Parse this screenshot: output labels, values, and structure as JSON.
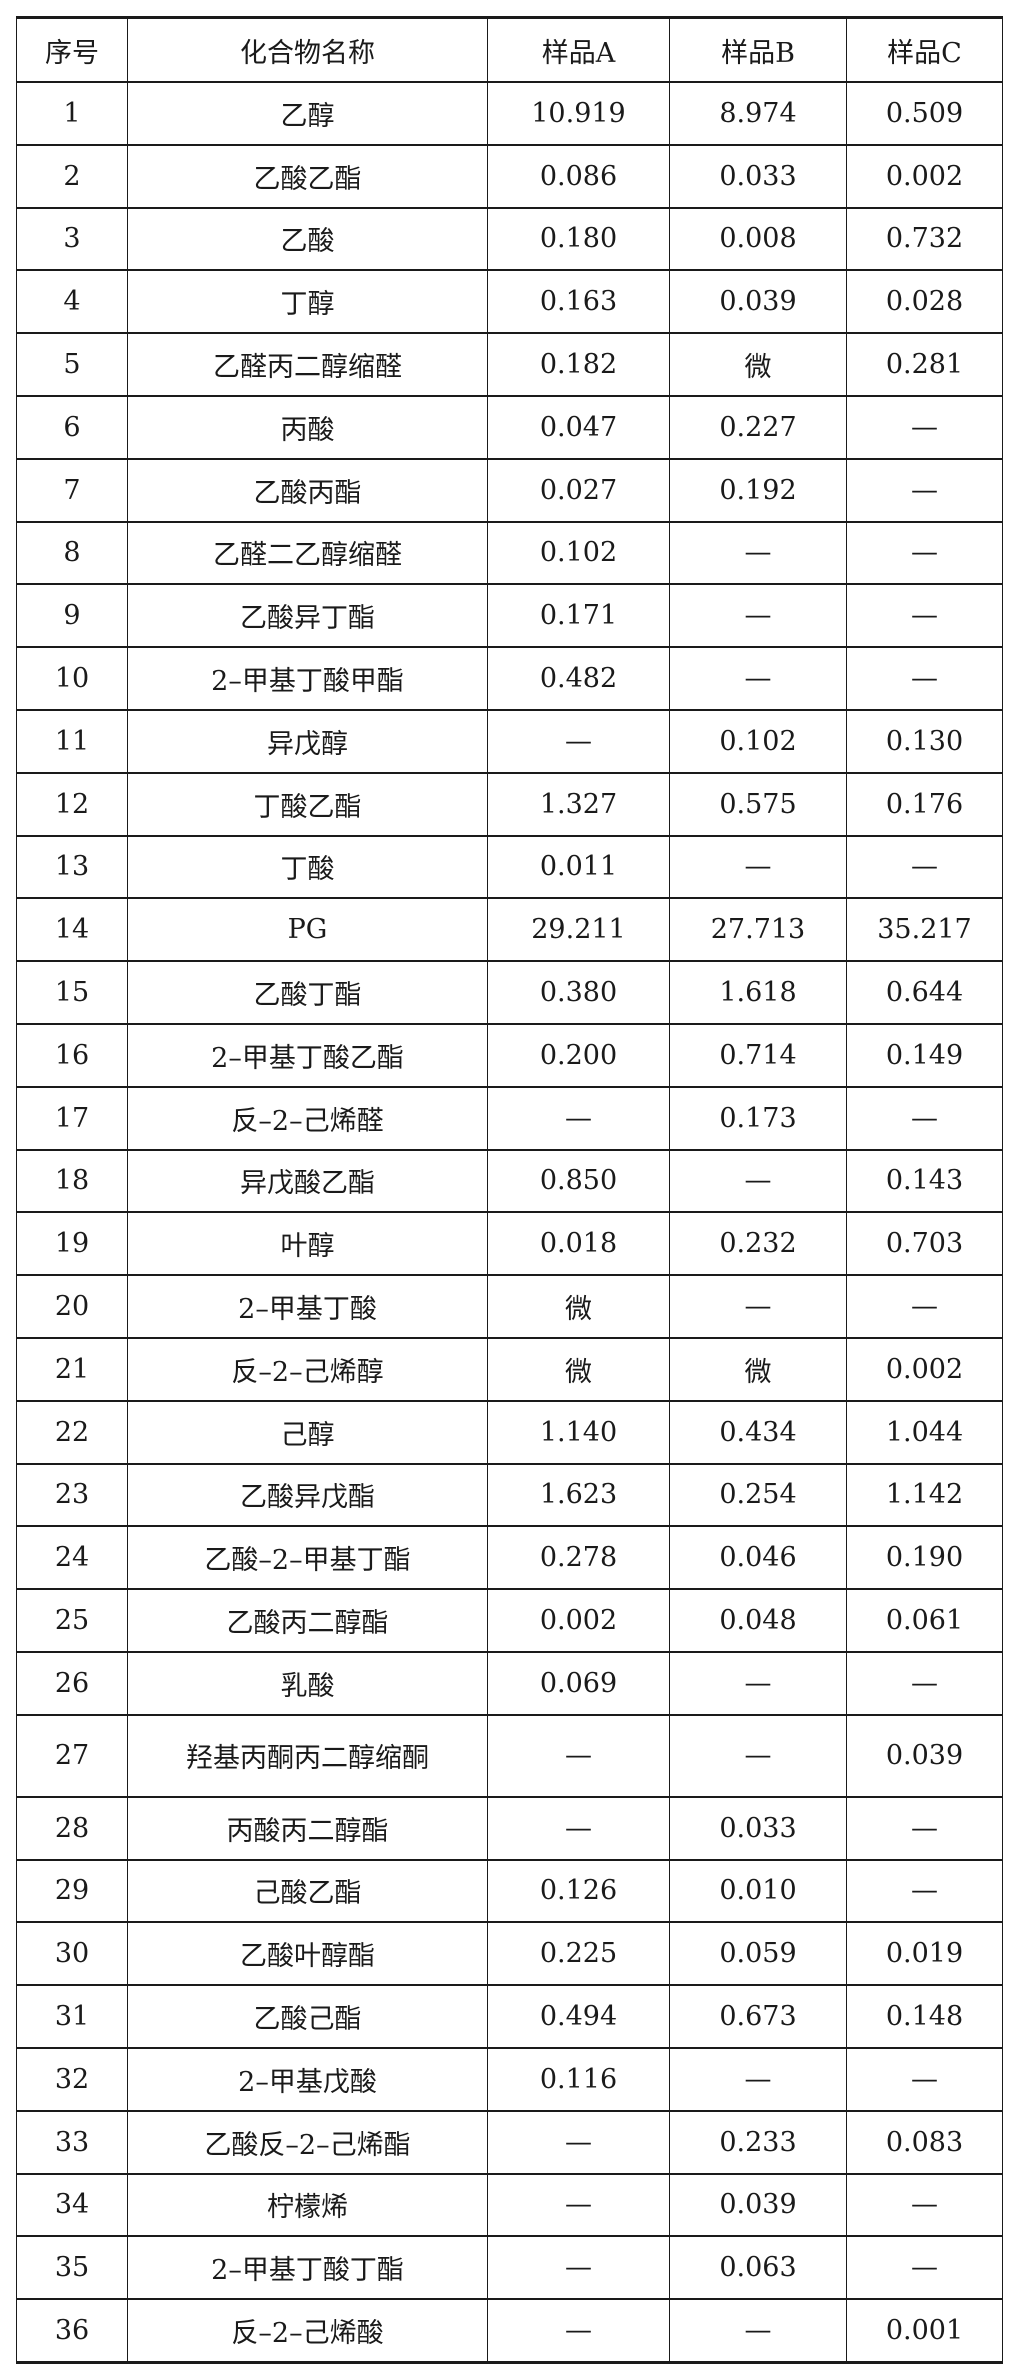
{
  "table": {
    "headers": [
      "序号",
      "化合物名称",
      "样品A",
      "样品B",
      "样品C"
    ],
    "rows": [
      [
        "1",
        "乙醇",
        "10.919",
        "8.974",
        "0.509"
      ],
      [
        "2",
        "乙酸乙酯",
        "0.086",
        "0.033",
        "0.002"
      ],
      [
        "3",
        "乙酸",
        "0.180",
        "0.008",
        "0.732"
      ],
      [
        "4",
        "丁醇",
        "0.163",
        "0.039",
        "0.028"
      ],
      [
        "5",
        "乙醛丙二醇缩醛",
        "0.182",
        "微",
        "0.281"
      ],
      [
        "6",
        "丙酸",
        "0.047",
        "0.227",
        "—"
      ],
      [
        "7",
        "乙酸丙酯",
        "0.027",
        "0.192",
        "—"
      ],
      [
        "8",
        "乙醛二乙醇缩醛",
        "0.102",
        "—",
        "—"
      ],
      [
        "9",
        "乙酸异丁酯",
        "0.171",
        "—",
        "—"
      ],
      [
        "10",
        "2–甲基丁酸甲酯",
        "0.482",
        "—",
        "—"
      ],
      [
        "11",
        "异戊醇",
        "—",
        "0.102",
        "0.130"
      ],
      [
        "12",
        "丁酸乙酯",
        "1.327",
        "0.575",
        "0.176"
      ],
      [
        "13",
        "丁酸",
        "0.011",
        "—",
        "—"
      ],
      [
        "14",
        "PG",
        "29.211",
        "27.713",
        "35.217"
      ],
      [
        "15",
        "乙酸丁酯",
        "0.380",
        "1.618",
        "0.644"
      ],
      [
        "16",
        "2–甲基丁酸乙酯",
        "0.200",
        "0.714",
        "0.149"
      ],
      [
        "17",
        "反–2–己烯醛",
        "—",
        "0.173",
        "—"
      ],
      [
        "18",
        "异戊酸乙酯",
        "0.850",
        "—",
        "0.143"
      ],
      [
        "19",
        "叶醇",
        "0.018",
        "0.232",
        "0.703"
      ],
      [
        "20",
        "2–甲基丁酸",
        "微",
        "—",
        "—"
      ],
      [
        "21",
        "反–2–己烯醇",
        "微",
        "微",
        "0.002"
      ],
      [
        "22",
        "己醇",
        "1.140",
        "0.434",
        "1.044"
      ],
      [
        "23",
        "乙酸异戊酯",
        "1.623",
        "0.254",
        "1.142"
      ],
      [
        "24",
        "乙酸–2–甲基丁酯",
        "0.278",
        "0.046",
        "0.190"
      ],
      [
        "25",
        "乙酸丙二醇酯",
        "0.002",
        "0.048",
        "0.061"
      ],
      [
        "26",
        "乳酸",
        "0.069",
        "—",
        "—"
      ],
      [
        "27",
        "羟基丙酮丙二醇缩酮",
        "—",
        "—",
        "0.039"
      ],
      [
        "28",
        "丙酸丙二醇酯",
        "—",
        "0.033",
        "—"
      ],
      [
        "29",
        "己酸乙酯",
        "0.126",
        "0.010",
        "—"
      ],
      [
        "30",
        "乙酸叶醇酯",
        "0.225",
        "0.059",
        "0.019"
      ],
      [
        "31",
        "乙酸己酯",
        "0.494",
        "0.673",
        "0.148"
      ],
      [
        "32",
        "2–甲基戊酸",
        "0.116",
        "—",
        "—"
      ],
      [
        "33",
        "乙酸反–2–己烯酯",
        "—",
        "0.233",
        "0.083"
      ],
      [
        "34",
        "柠檬烯",
        "—",
        "0.039",
        "—"
      ],
      [
        "35",
        "2–甲基丁酸丁酯",
        "—",
        "0.063",
        "—"
      ],
      [
        "36",
        "反–2–己烯酸",
        "—",
        "—",
        "0.001"
      ]
    ]
  }
}
